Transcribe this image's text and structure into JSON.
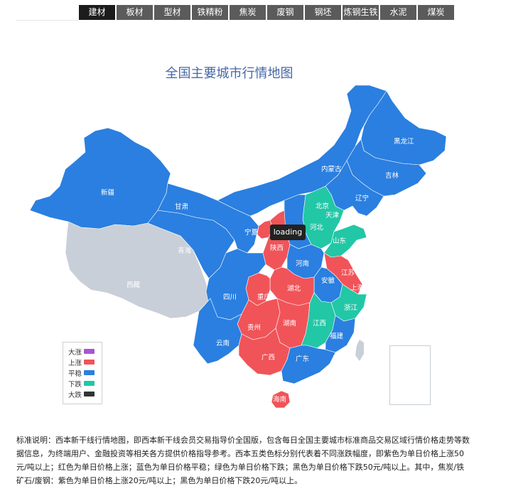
{
  "tabs": [
    {
      "label": "建材",
      "active": true
    },
    {
      "label": "板材",
      "active": false
    },
    {
      "label": "型材",
      "active": false
    },
    {
      "label": "铁精粉",
      "active": false
    },
    {
      "label": "焦炭",
      "active": false
    },
    {
      "label": "废钢",
      "active": false
    },
    {
      "label": "钢坯",
      "active": false
    },
    {
      "label": "炼钢生铁",
      "active": false
    },
    {
      "label": "水泥",
      "active": false
    },
    {
      "label": "煤炭",
      "active": false
    }
  ],
  "map": {
    "title": "全国主要城市行情地图",
    "tooltip": "loading",
    "colors": {
      "up_big": "#a855d6",
      "up": "#f05459",
      "flat": "#2a7fe0",
      "down": "#22c7a6",
      "down_big": "#333333",
      "nodata": "#c9cfd8"
    },
    "provinces": [
      {
        "id": "xinjiang",
        "name": "新疆",
        "status": "flat"
      },
      {
        "id": "xizang",
        "name": "西藏",
        "status": "nodata"
      },
      {
        "id": "qinghai",
        "name": "青海",
        "status": "flat"
      },
      {
        "id": "gansu",
        "name": "甘肃",
        "status": "flat"
      },
      {
        "id": "neimenggu",
        "name": "内蒙古",
        "status": "flat"
      },
      {
        "id": "heilongjiang",
        "name": "黑龙江",
        "status": "flat"
      },
      {
        "id": "jilin",
        "name": "吉林",
        "status": "flat"
      },
      {
        "id": "liaoning",
        "name": "辽宁",
        "status": "flat"
      },
      {
        "id": "beijing",
        "name": "北京",
        "status": "down"
      },
      {
        "id": "tianjin",
        "name": "天津",
        "status": "down"
      },
      {
        "id": "hebei",
        "name": "河北",
        "status": "down"
      },
      {
        "id": "shandong",
        "name": "山东",
        "status": "down"
      },
      {
        "id": "ningxia",
        "name": "宁夏",
        "status": "up"
      },
      {
        "id": "shaanxi",
        "name": "陕西",
        "status": "up"
      },
      {
        "id": "henan",
        "name": "河南",
        "status": "flat"
      },
      {
        "id": "jiangsu",
        "name": "江苏",
        "status": "up"
      },
      {
        "id": "shanghai",
        "name": "上海",
        "status": "up"
      },
      {
        "id": "anhui",
        "name": "安徽",
        "status": "flat"
      },
      {
        "id": "sichuan",
        "name": "四川",
        "status": "flat"
      },
      {
        "id": "chongqing",
        "name": "重庆",
        "status": "up"
      },
      {
        "id": "hubei",
        "name": "湖北",
        "status": "up"
      },
      {
        "id": "zhejiang",
        "name": "浙江",
        "status": "down"
      },
      {
        "id": "guizhou",
        "name": "贵州",
        "status": "up"
      },
      {
        "id": "hunan",
        "name": "湖南",
        "status": "up"
      },
      {
        "id": "jiangxi",
        "name": "江西",
        "status": "down"
      },
      {
        "id": "fujian",
        "name": "福建",
        "status": "flat"
      },
      {
        "id": "yunnan",
        "name": "云南",
        "status": "flat"
      },
      {
        "id": "guangxi",
        "name": "广西",
        "status": "up"
      },
      {
        "id": "guangdong",
        "name": "广东",
        "status": "flat"
      },
      {
        "id": "hainan",
        "name": "海南",
        "status": "up"
      },
      {
        "id": "shanxi",
        "name": "山西",
        "status": "flat"
      }
    ],
    "legend": [
      {
        "label": "大涨",
        "status": "up_big"
      },
      {
        "label": "上涨",
        "status": "up"
      },
      {
        "label": "平稳",
        "status": "flat"
      },
      {
        "label": "下跌",
        "status": "down"
      },
      {
        "label": "大跌",
        "status": "down_big"
      }
    ]
  },
  "note": "标准说明：西本新干线行情地图，即西本新干线会员交易指导价全国版，包含每日全国主要城市标准商品交易区域行情价格走势等数据信息，为终端用户、金融投资等相关各方提供价格指导参考。西本五类色标分别代表着不同涨跌幅度，即紫色为单日价格上涨50元/吨以上；红色为单日价格上涨；蓝色为单日价格平稳；绿色为单日价格下跌；黑色为单日价格下跌50元/吨以上。其中，焦炭/铁矿石/废钢：紫色为单日价格上涨20元/吨以上；黑色为单日价格下跌20元/吨以上。"
}
